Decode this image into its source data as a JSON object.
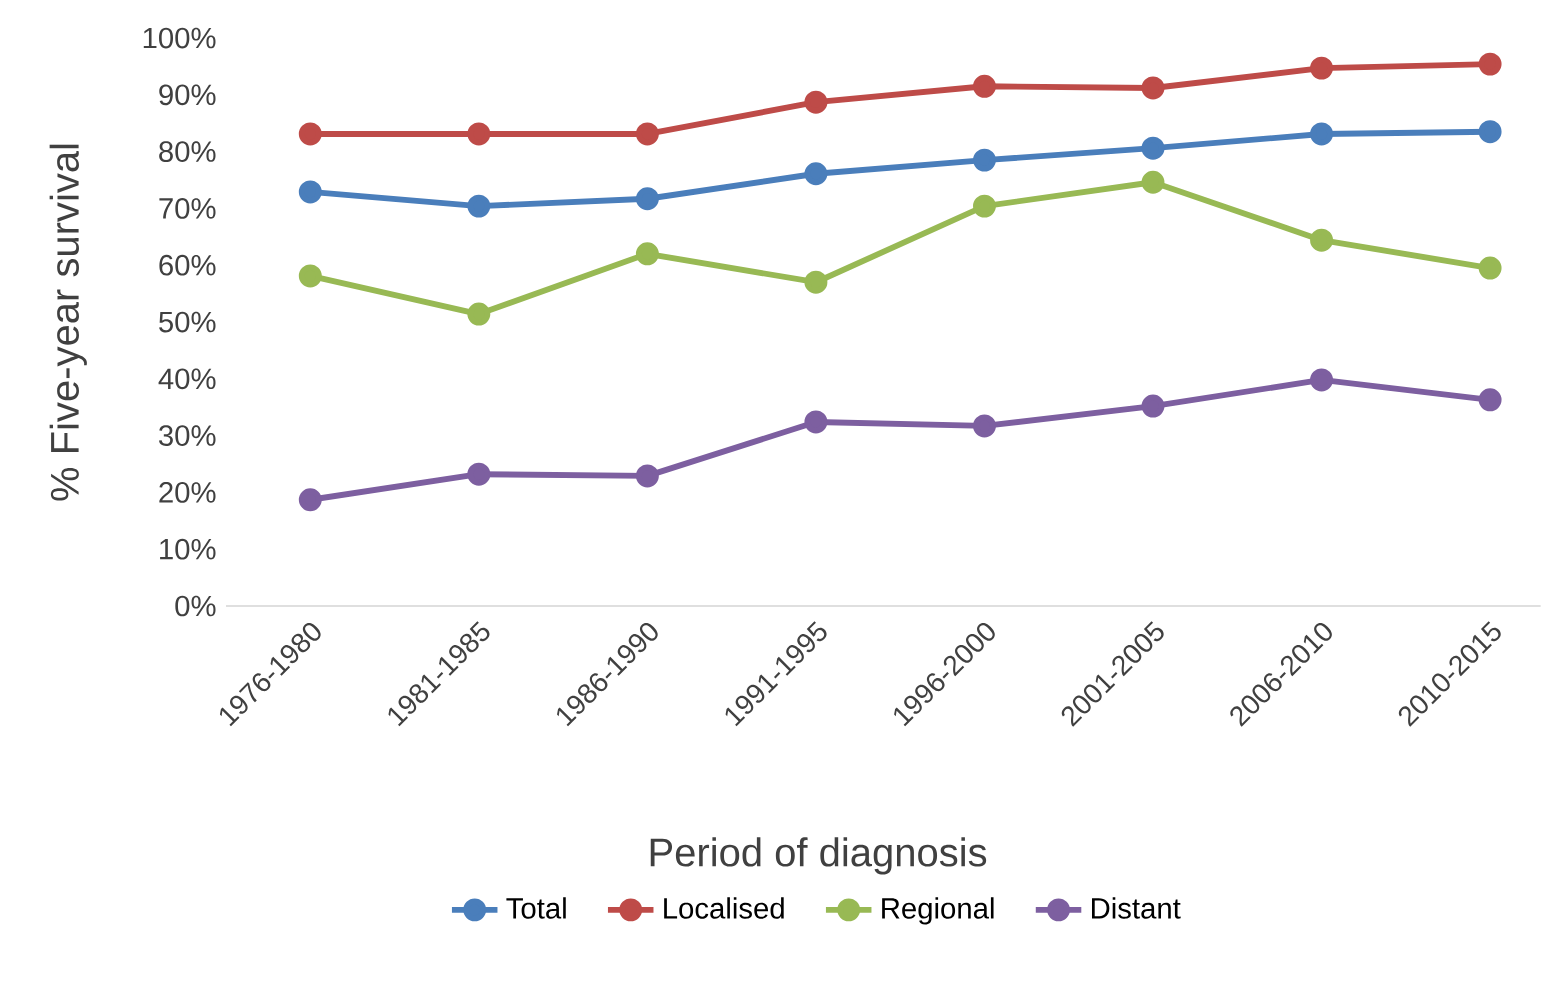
{
  "chart_data": {
    "type": "line",
    "xlabel": "Period of diagnosis",
    "ylabel": "% Five-year survival",
    "categories": [
      "1976-1980",
      "1981-1985",
      "1986-1990",
      "1991-1995",
      "1996-2000",
      "2001-2005",
      "2006-2010",
      "2010-2015"
    ],
    "series": [
      {
        "name": "Total",
        "color": "#4a7ebb",
        "values": [
          72.9,
          70.4,
          71.7,
          76.1,
          78.5,
          80.6,
          83.1,
          83.5
        ]
      },
      {
        "name": "Localised",
        "color": "#be4b48",
        "values": [
          83.1,
          83.1,
          83.1,
          88.7,
          91.5,
          91.2,
          94.7,
          95.4
        ]
      },
      {
        "name": "Regional",
        "color": "#98b954",
        "values": [
          58.1,
          51.4,
          62.0,
          57.0,
          70.4,
          74.6,
          64.4,
          59.5
        ]
      },
      {
        "name": "Distant",
        "color": "#7d5fa0",
        "values": [
          18.7,
          23.2,
          22.9,
          32.4,
          31.7,
          35.2,
          39.8,
          36.3
        ]
      }
    ],
    "ylim": [
      0,
      100
    ],
    "yticks": [
      {
        "value": 0,
        "label": "0%"
      },
      {
        "value": 10,
        "label": "10%"
      },
      {
        "value": 20,
        "label": "20%"
      },
      {
        "value": 30,
        "label": "30%"
      },
      {
        "value": 40,
        "label": "40%"
      },
      {
        "value": 50,
        "label": "50%"
      },
      {
        "value": 60,
        "label": "60%"
      },
      {
        "value": 70,
        "label": "70%"
      },
      {
        "value": 80,
        "label": "80%"
      },
      {
        "value": 90,
        "label": "90%"
      },
      {
        "value": 100,
        "label": "100%"
      }
    ],
    "grid": false,
    "legend": "bottom",
    "marker": "circle",
    "line_style": "solid"
  }
}
